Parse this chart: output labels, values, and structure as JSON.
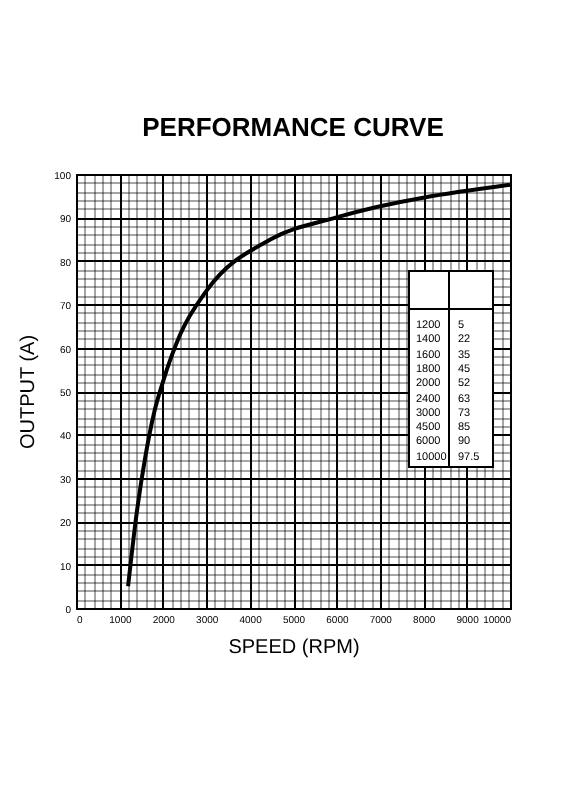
{
  "chart_data": {
    "type": "line",
    "title": "PERFORMANCE CURVE",
    "xlabel": "SPEED (RPM)",
    "ylabel": "OUTPUT (A)",
    "x": [
      1200,
      1400,
      1600,
      1800,
      2000,
      2400,
      3000,
      4500,
      6000,
      10000
    ],
    "series": [
      {
        "color": "#000000",
        "values": [
          5,
          22,
          35,
          45,
          52,
          63,
          73,
          85,
          90,
          97.5
        ]
      }
    ],
    "xlim": [
      0,
      10000
    ],
    "xticks": [
      0,
      1000,
      2000,
      3000,
      4000,
      5000,
      6000,
      7000,
      8000,
      9000,
      10000
    ],
    "ylim": [
      0,
      100
    ],
    "yticks": [
      0,
      10,
      20,
      30,
      40,
      50,
      60,
      70,
      80,
      90,
      100
    ],
    "grid": true,
    "marker": "none",
    "line_style": "solid",
    "annotations": [
      "1200",
      "5",
      "1400",
      "22",
      "1600",
      "35",
      "1800",
      "45",
      "2000",
      "52",
      "2400",
      "63",
      "3000",
      "73",
      "4500",
      "85",
      "6000",
      "90",
      "10000",
      "97.5"
    ]
  }
}
